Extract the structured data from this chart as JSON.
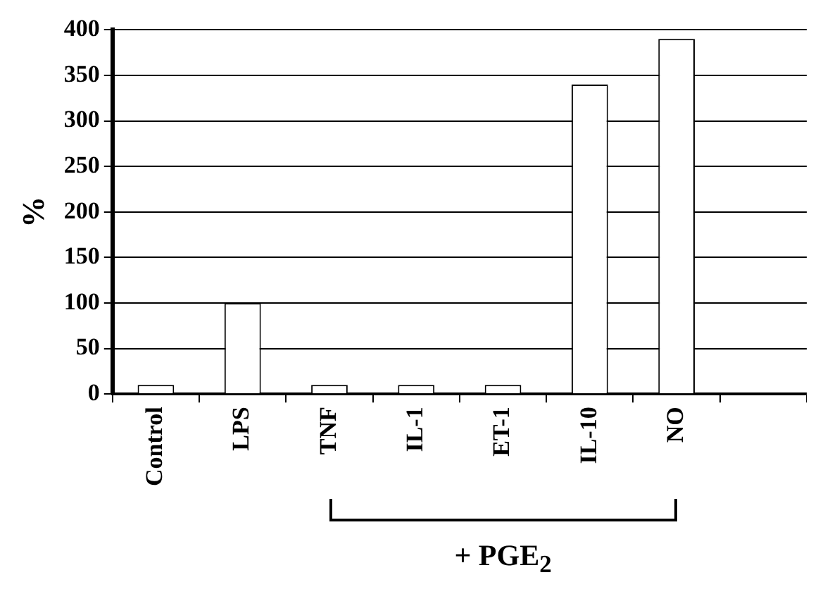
{
  "chart_data": {
    "type": "bar",
    "ylabel": "%",
    "categories": [
      "Control",
      "LPS",
      "TNF",
      "IL-1",
      "ET-1",
      "IL-10",
      "NO",
      null
    ],
    "values": [
      10,
      100,
      10,
      10,
      10,
      340,
      390,
      null
    ],
    "color": "#ffffff",
    "ylim": [
      0,
      400
    ],
    "yticks": [
      0,
      50,
      100,
      150,
      200,
      250,
      300,
      350,
      400
    ],
    "grid": "y",
    "annotations": [
      "+ PGE$_{2}$"
    ]
  }
}
